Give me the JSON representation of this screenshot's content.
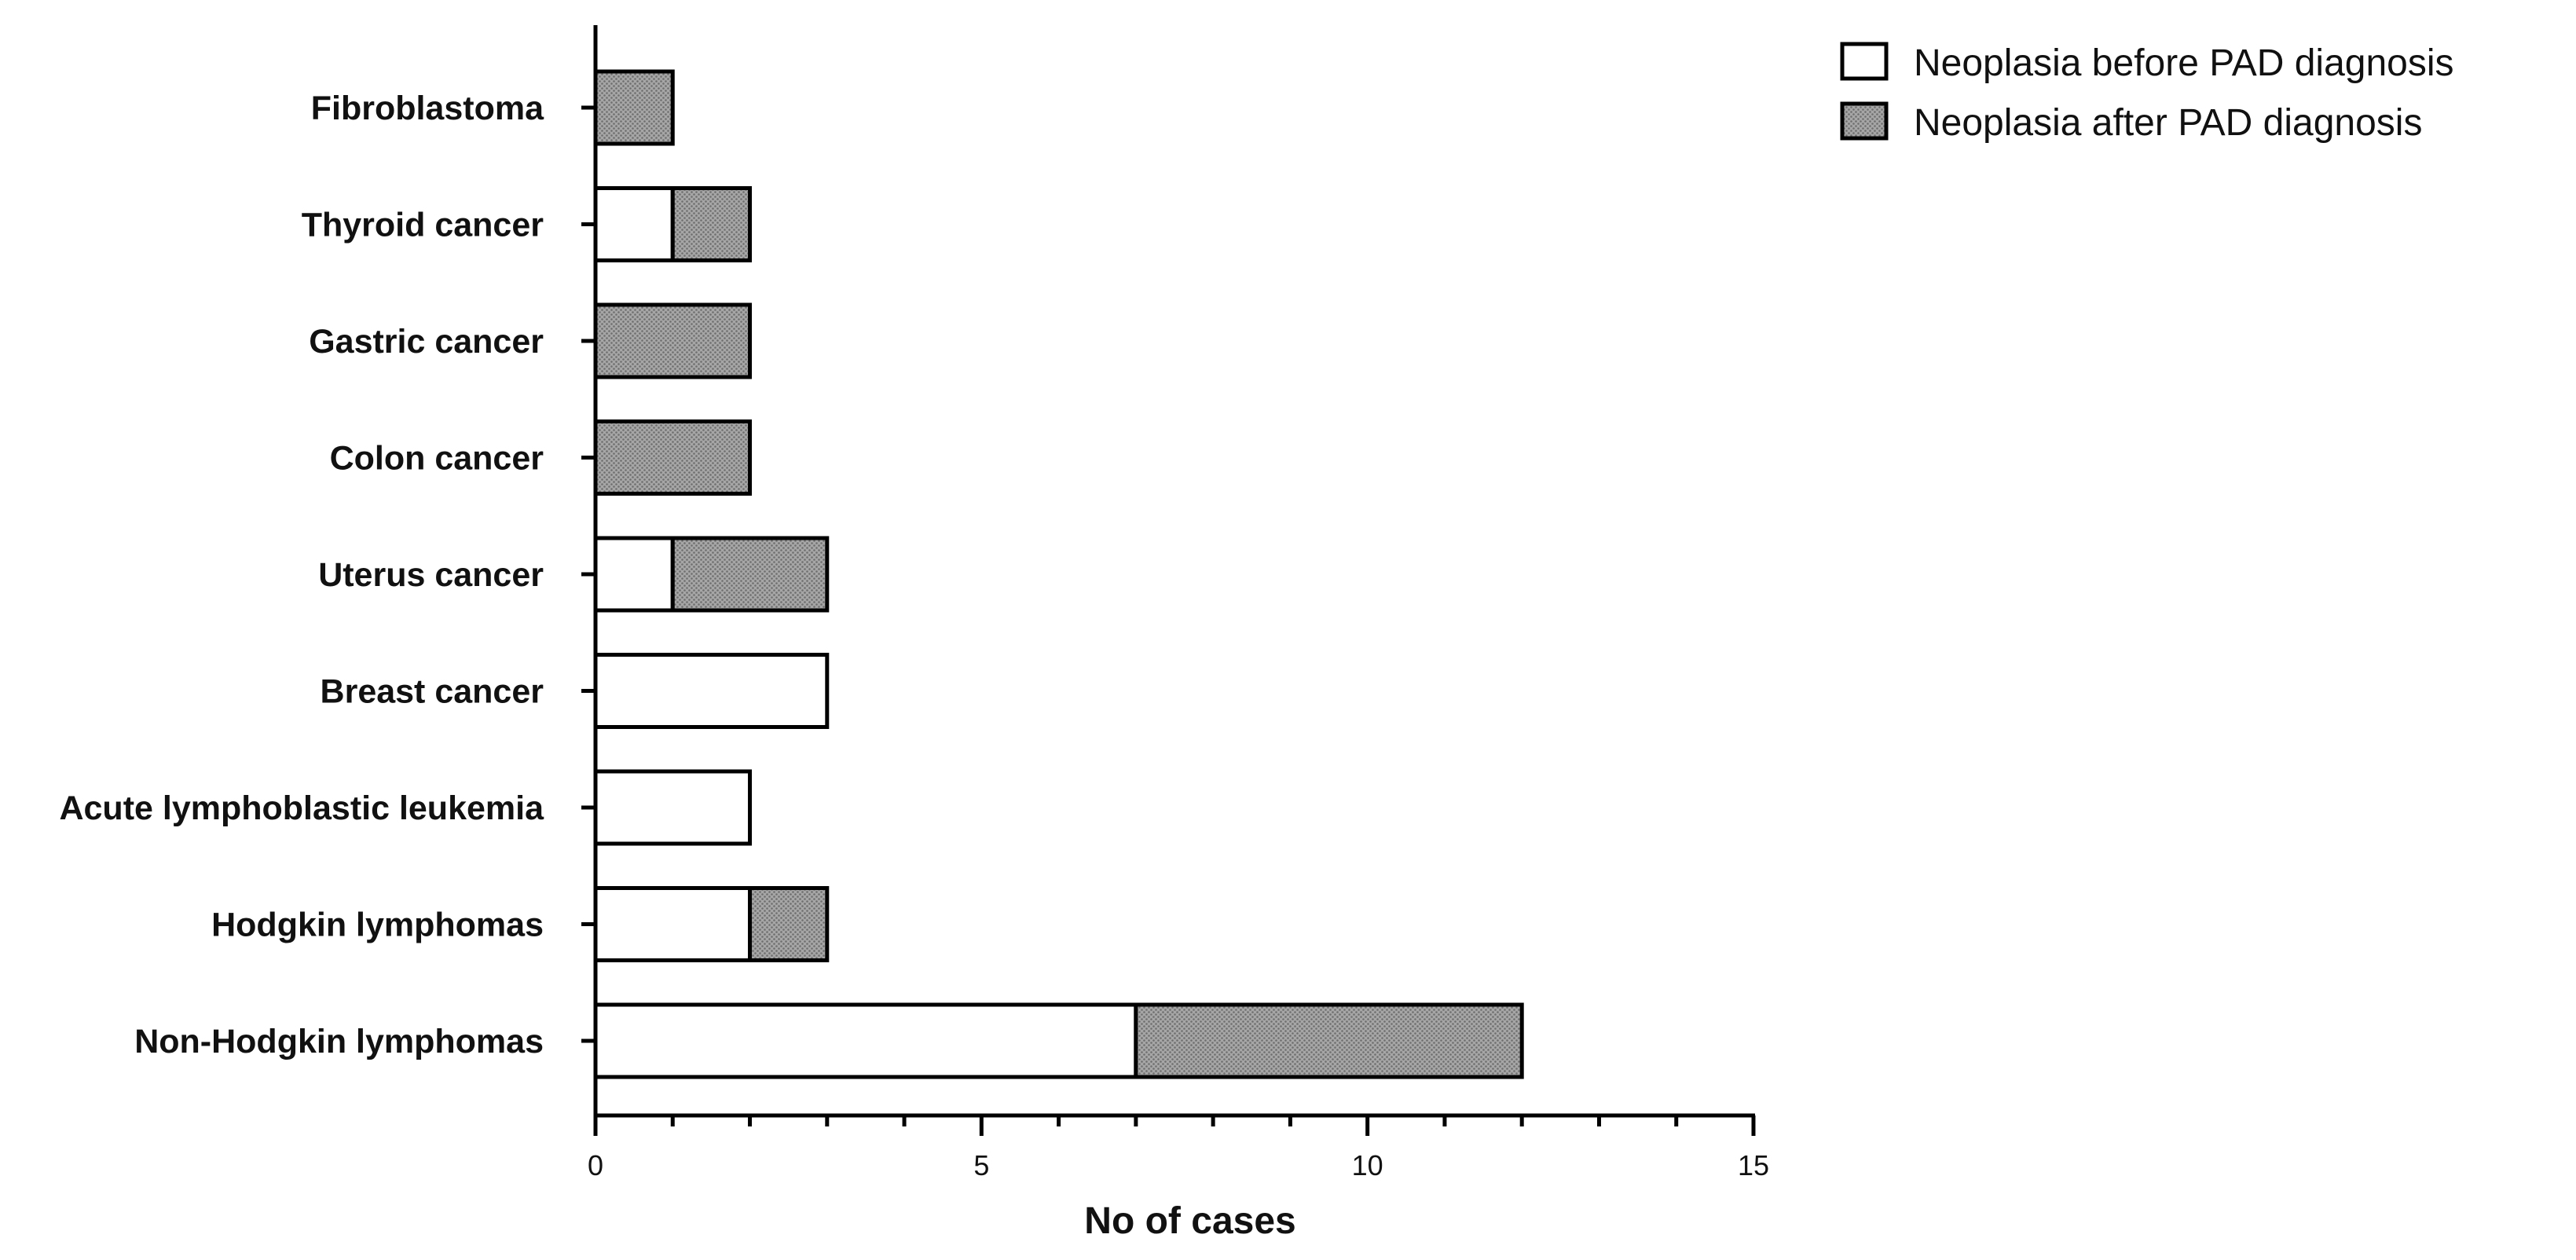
{
  "chart_data": {
    "type": "bar",
    "orientation": "horizontal",
    "stacked": true,
    "categories": [
      "Fibroblastoma",
      "Thyroid cancer",
      "Gastric cancer",
      "Colon cancer",
      "Uterus cancer",
      "Breast cancer",
      "Acute lymphoblastic leukemia",
      "Hodgkin lymphomas",
      "Non-Hodgkin lymphomas"
    ],
    "series": [
      {
        "name": "Neoplasia before PAD diagnosis",
        "values": [
          0,
          1,
          0,
          0,
          1,
          3,
          2,
          2,
          7
        ],
        "color": "#ffffff",
        "pattern": "none"
      },
      {
        "name": "Neoplasia after PAD diagnosis",
        "values": [
          1,
          1,
          2,
          2,
          2,
          0,
          0,
          1,
          5
        ],
        "color": "#9a9a9a",
        "pattern": "stipple"
      }
    ],
    "title": "",
    "xlabel": "No of cases",
    "ylabel": "",
    "xlim": [
      0,
      15
    ],
    "xticks": [
      0,
      5,
      10,
      15
    ],
    "xticklabels": [
      "0",
      "5",
      "10",
      "15"
    ],
    "x_minor_step": 1,
    "grid": false,
    "legend": "top-right"
  }
}
